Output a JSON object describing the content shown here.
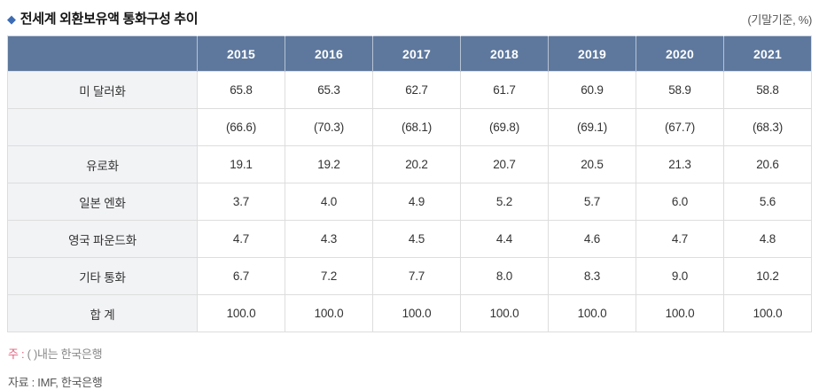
{
  "header": {
    "bullet": "◆",
    "title": "전세계 외환보유액 통화구성 추이",
    "unit_note": "(기말기준, %)"
  },
  "colors": {
    "header_bg": "#5e789d",
    "header_text": "#ffffff",
    "label_column_bg": "#f2f3f5",
    "grid_border": "#dddddd",
    "bullet_blue": "#3d6cb4",
    "note_marker_red": "#e4607d",
    "body_text": "#333333"
  },
  "table": {
    "corner_label": "",
    "years": [
      "2015",
      "2016",
      "2017",
      "2018",
      "2019",
      "2020",
      "2021"
    ],
    "rows": [
      {
        "label": "미 달러화",
        "values": [
          "65.8",
          "65.3",
          "62.7",
          "61.7",
          "60.9",
          "58.9",
          "58.8"
        ]
      },
      {
        "label": "",
        "values": [
          "(66.6)",
          "(70.3)",
          "(68.1)",
          "(69.8)",
          "(69.1)",
          "(67.7)",
          "(68.3)"
        ]
      },
      {
        "label": "유로화",
        "values": [
          "19.1",
          "19.2",
          "20.2",
          "20.7",
          "20.5",
          "21.3",
          "20.6"
        ]
      },
      {
        "label": "일본 엔화",
        "values": [
          "3.7",
          "4.0",
          "4.9",
          "5.2",
          "5.7",
          "6.0",
          "5.6"
        ]
      },
      {
        "label": "영국 파운드화",
        "values": [
          "4.7",
          "4.3",
          "4.5",
          "4.4",
          "4.6",
          "4.7",
          "4.8"
        ]
      },
      {
        "label": "기타 통화",
        "values": [
          "6.7",
          "7.2",
          "7.7",
          "8.0",
          "8.3",
          "9.0",
          "10.2"
        ]
      },
      {
        "label": "합 계",
        "values": [
          "100.0",
          "100.0",
          "100.0",
          "100.0",
          "100.0",
          "100.0",
          "100.0"
        ]
      }
    ]
  },
  "notes": {
    "note1_marker": "주 :",
    "note1_body": " ( )내는 한국은행",
    "note2": "자료 : IMF, 한국은행"
  }
}
